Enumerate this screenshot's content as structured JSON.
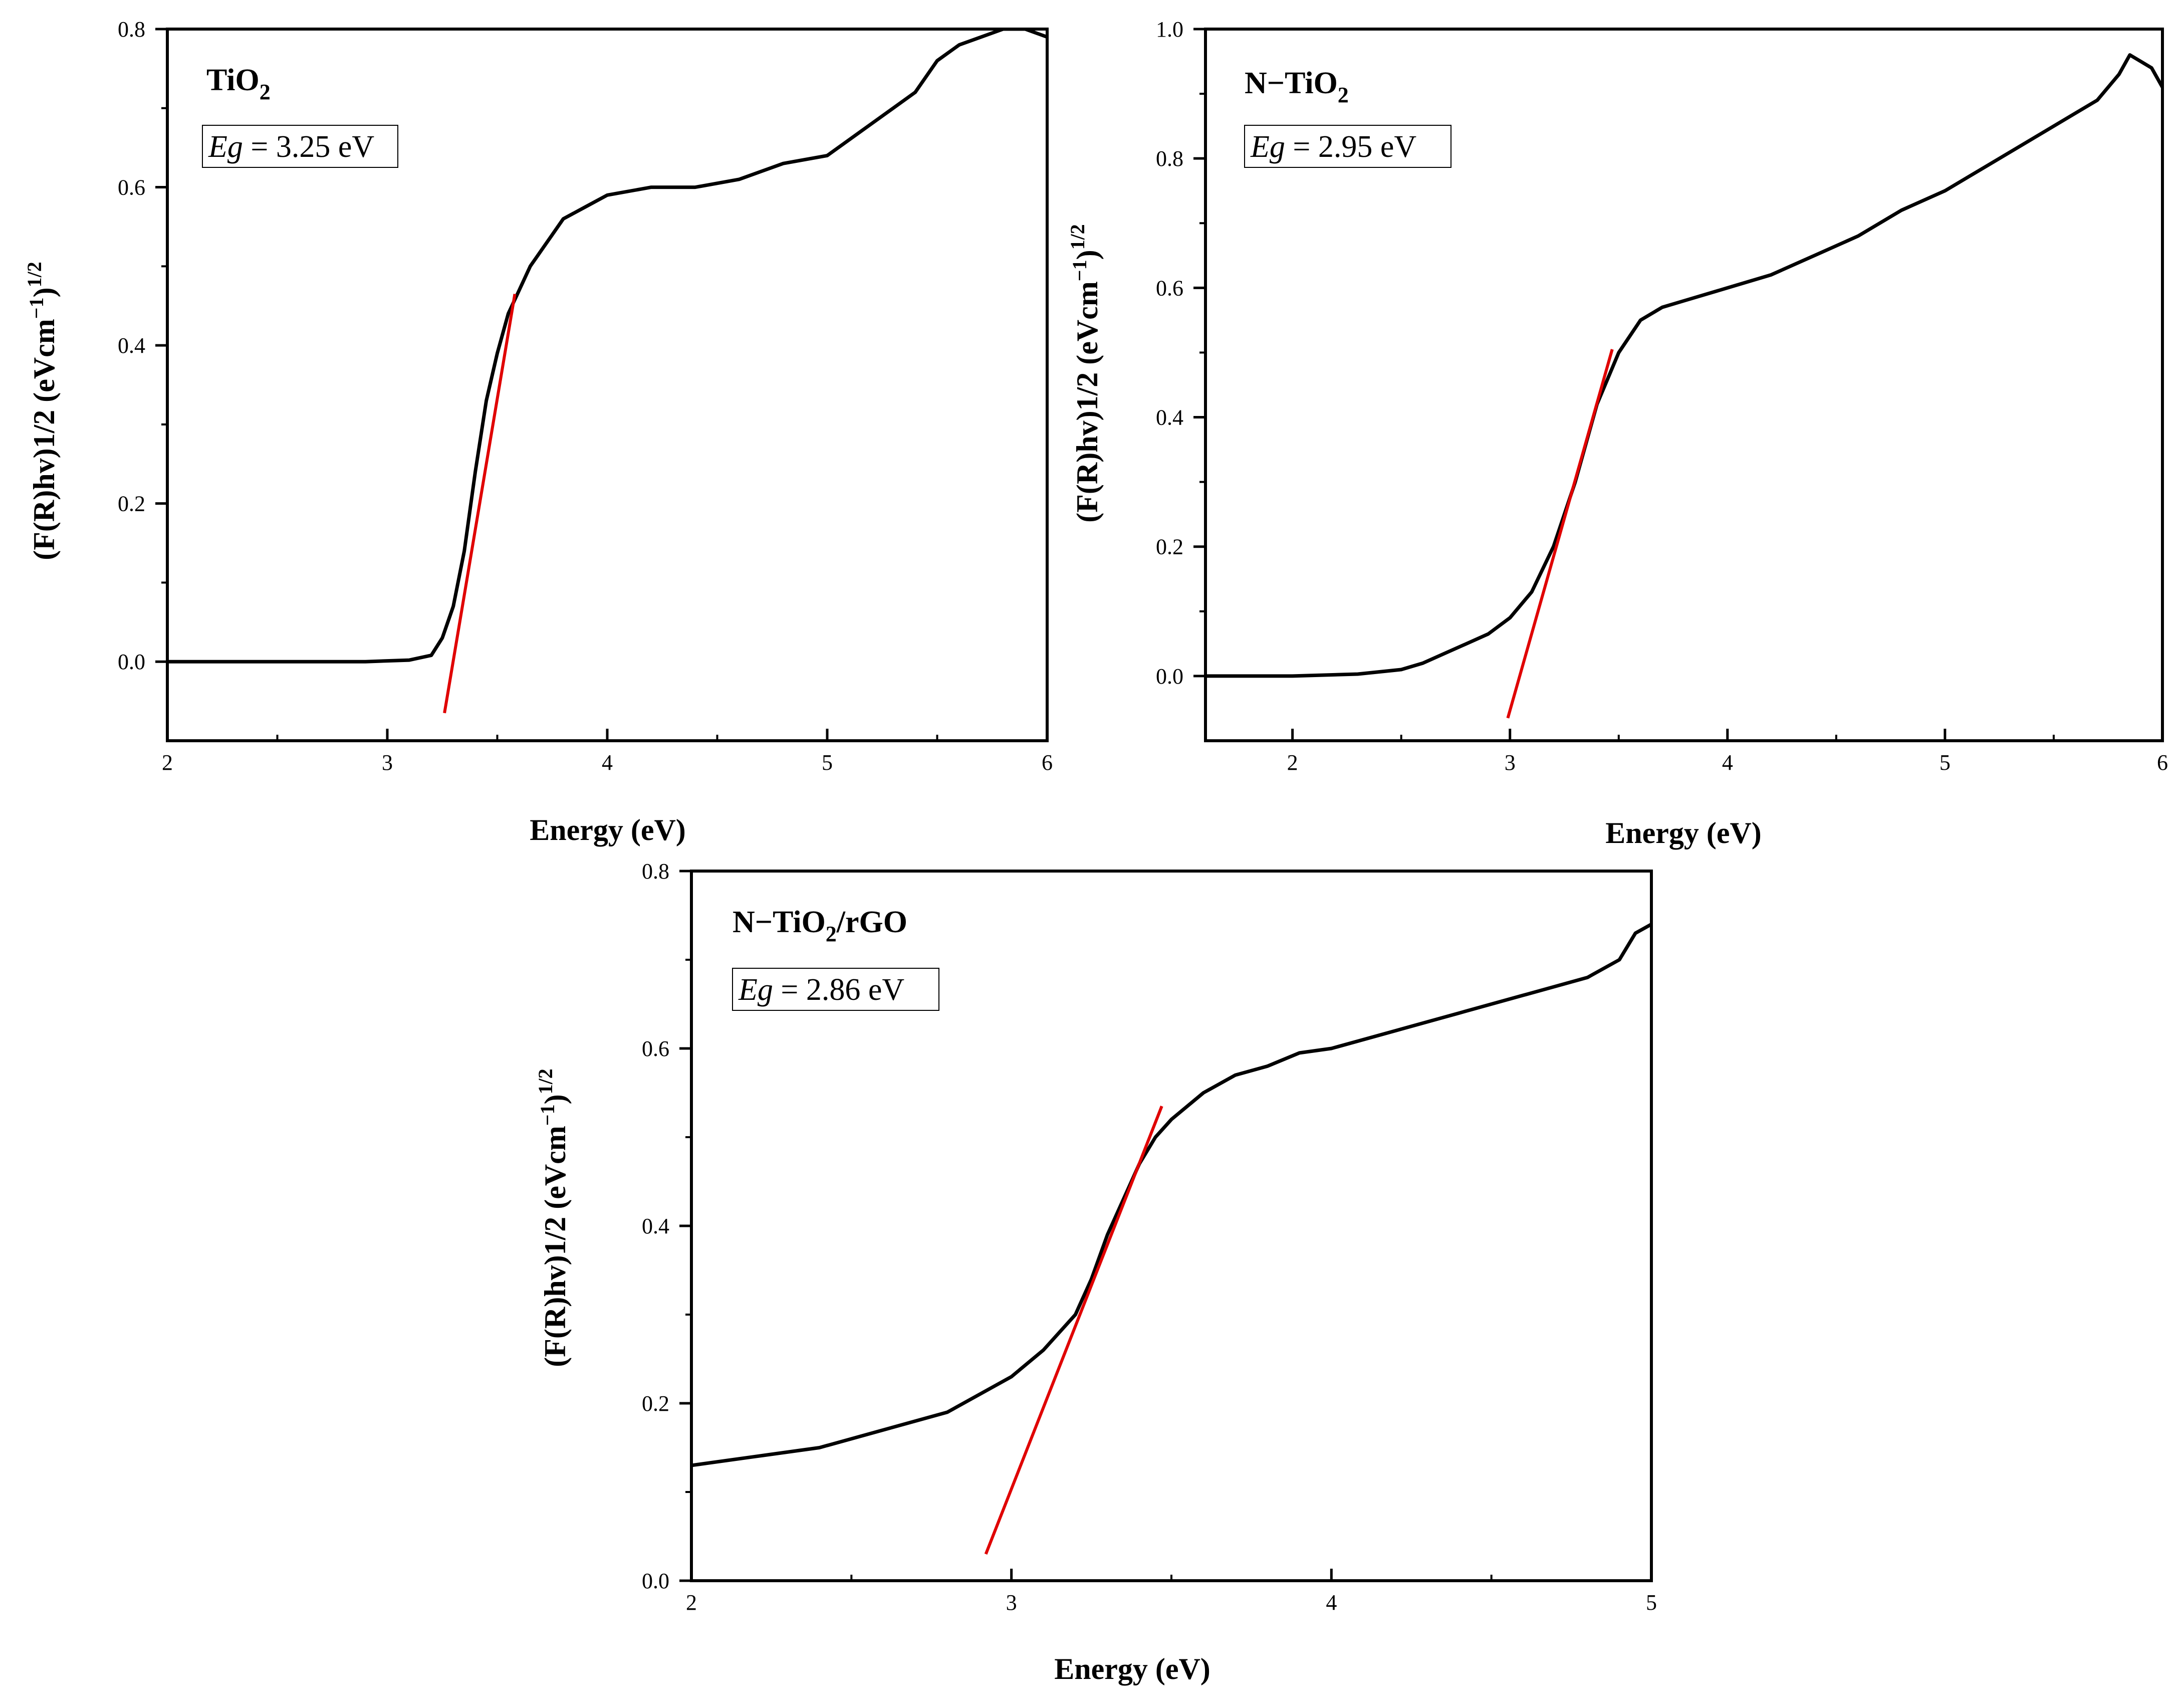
{
  "chart_data": [
    {
      "type": "line",
      "title": "TiO",
      "title_subscript": "2",
      "eg_symbol": "Eg",
      "eg_value": " = 3.25 eV",
      "xlabel": "Energy (eV)",
      "ylabel": "(F(R)hv)1/2 (eVcm",
      "ylabel_sup1": "−1",
      "ylabel_close": ")",
      "ylabel_sup2": "1/2",
      "xlim": [
        2,
        6
      ],
      "ylim": [
        -0.1,
        0.8
      ],
      "xticks": [
        2,
        3,
        4,
        5,
        6
      ],
      "xtick_labels": [
        "2",
        "3",
        "4",
        "5",
        "6"
      ],
      "yticks": [
        0.0,
        0.2,
        0.4,
        0.6,
        0.8
      ],
      "ytick_labels": [
        "0.0",
        "0.2",
        "0.4",
        "0.6",
        "0.8"
      ],
      "series": [
        {
          "name": "spectrum",
          "color": "#000000",
          "x": [
            2.0,
            2.5,
            2.9,
            3.1,
            3.2,
            3.25,
            3.3,
            3.35,
            3.4,
            3.45,
            3.5,
            3.55,
            3.6,
            3.65,
            3.7,
            3.75,
            3.8,
            3.9,
            4.0,
            4.2,
            4.4,
            4.6,
            4.8,
            5.0,
            5.2,
            5.4,
            5.5,
            5.6,
            5.7,
            5.8,
            5.9,
            6.0
          ],
          "y": [
            0.0,
            0.0,
            0.0,
            0.002,
            0.008,
            0.03,
            0.07,
            0.14,
            0.24,
            0.33,
            0.39,
            0.44,
            0.47,
            0.5,
            0.52,
            0.54,
            0.56,
            0.575,
            0.59,
            0.6,
            0.6,
            0.61,
            0.63,
            0.64,
            0.68,
            0.72,
            0.76,
            0.78,
            0.79,
            0.8,
            0.8,
            0.79
          ]
        },
        {
          "name": "tangent fit",
          "color": "#e00000",
          "x": [
            3.26,
            3.58
          ],
          "y": [
            -0.065,
            0.465
          ]
        }
      ]
    },
    {
      "type": "line",
      "title": "N−TiO",
      "title_subscript": "2",
      "eg_symbol": "Eg",
      "eg_value": " = 2.95 eV",
      "xlabel": "Energy (eV)",
      "ylabel": "(F(R)hv)1/2 (eVcm",
      "ylabel_sup1": "−1",
      "ylabel_close": ")",
      "ylabel_sup2": "1/2",
      "xlim": [
        1.6,
        6
      ],
      "ylim": [
        -0.1,
        1.0
      ],
      "xticks": [
        2,
        3,
        4,
        5,
        6
      ],
      "xtick_labels": [
        "2",
        "3",
        "4",
        "5",
        "6"
      ],
      "yticks": [
        0.0,
        0.2,
        0.4,
        0.6,
        0.8,
        1.0
      ],
      "ytick_labels": [
        "0.0",
        "0.2",
        "0.4",
        "0.6",
        "0.8",
        "1.0"
      ],
      "series": [
        {
          "name": "spectrum",
          "color": "#000000",
          "x": [
            1.6,
            2.0,
            2.3,
            2.5,
            2.6,
            2.7,
            2.8,
            2.9,
            3.0,
            3.1,
            3.2,
            3.3,
            3.4,
            3.5,
            3.6,
            3.7,
            3.8,
            4.0,
            4.2,
            4.4,
            4.6,
            4.8,
            5.0,
            5.2,
            5.4,
            5.6,
            5.7,
            5.8,
            5.85,
            5.9,
            5.95,
            6.0
          ],
          "y": [
            0.0,
            0.0,
            0.003,
            0.01,
            0.02,
            0.035,
            0.05,
            0.065,
            0.09,
            0.13,
            0.2,
            0.3,
            0.42,
            0.5,
            0.55,
            0.57,
            0.58,
            0.6,
            0.62,
            0.65,
            0.68,
            0.72,
            0.75,
            0.79,
            0.83,
            0.87,
            0.89,
            0.93,
            0.96,
            0.95,
            0.94,
            0.91
          ]
        },
        {
          "name": "tangent fit",
          "color": "#e00000",
          "x": [
            2.99,
            3.47
          ],
          "y": [
            -0.065,
            0.505
          ]
        }
      ]
    },
    {
      "type": "line",
      "title": "N−TiO",
      "title_subscript": "2",
      "title_suffix": "/rGO",
      "eg_symbol": "Eg",
      "eg_value": " = 2.86 eV",
      "xlabel": "Energy (eV)",
      "ylabel": "(F(R)hv)1/2 (eVcm",
      "ylabel_sup1": "−1",
      "ylabel_close": ")",
      "ylabel_sup2": "1/2",
      "xlim": [
        2,
        5
      ],
      "ylim": [
        0.0,
        0.8
      ],
      "xticks": [
        2,
        3,
        4,
        5
      ],
      "xtick_labels": [
        "2",
        "3",
        "4",
        "5"
      ],
      "yticks": [
        0.0,
        0.2,
        0.4,
        0.6,
        0.8
      ],
      "ytick_labels": [
        "0.0",
        "0.2",
        "0.4",
        "0.6",
        "0.8"
      ],
      "series": [
        {
          "name": "spectrum",
          "color": "#000000",
          "x": [
            2.0,
            2.2,
            2.4,
            2.6,
            2.8,
            2.9,
            3.0,
            3.1,
            3.2,
            3.25,
            3.3,
            3.35,
            3.4,
            3.45,
            3.5,
            3.6,
            3.7,
            3.8,
            3.9,
            4.0,
            4.2,
            4.4,
            4.6,
            4.8,
            4.9,
            4.95,
            5.0
          ],
          "y": [
            0.13,
            0.14,
            0.15,
            0.17,
            0.19,
            0.21,
            0.23,
            0.26,
            0.3,
            0.34,
            0.39,
            0.43,
            0.47,
            0.5,
            0.52,
            0.55,
            0.57,
            0.58,
            0.595,
            0.6,
            0.62,
            0.64,
            0.66,
            0.68,
            0.7,
            0.73,
            0.74
          ]
        },
        {
          "name": "tangent fit",
          "color": "#e00000",
          "x": [
            2.92,
            3.47
          ],
          "y": [
            0.03,
            0.535
          ]
        }
      ]
    }
  ]
}
